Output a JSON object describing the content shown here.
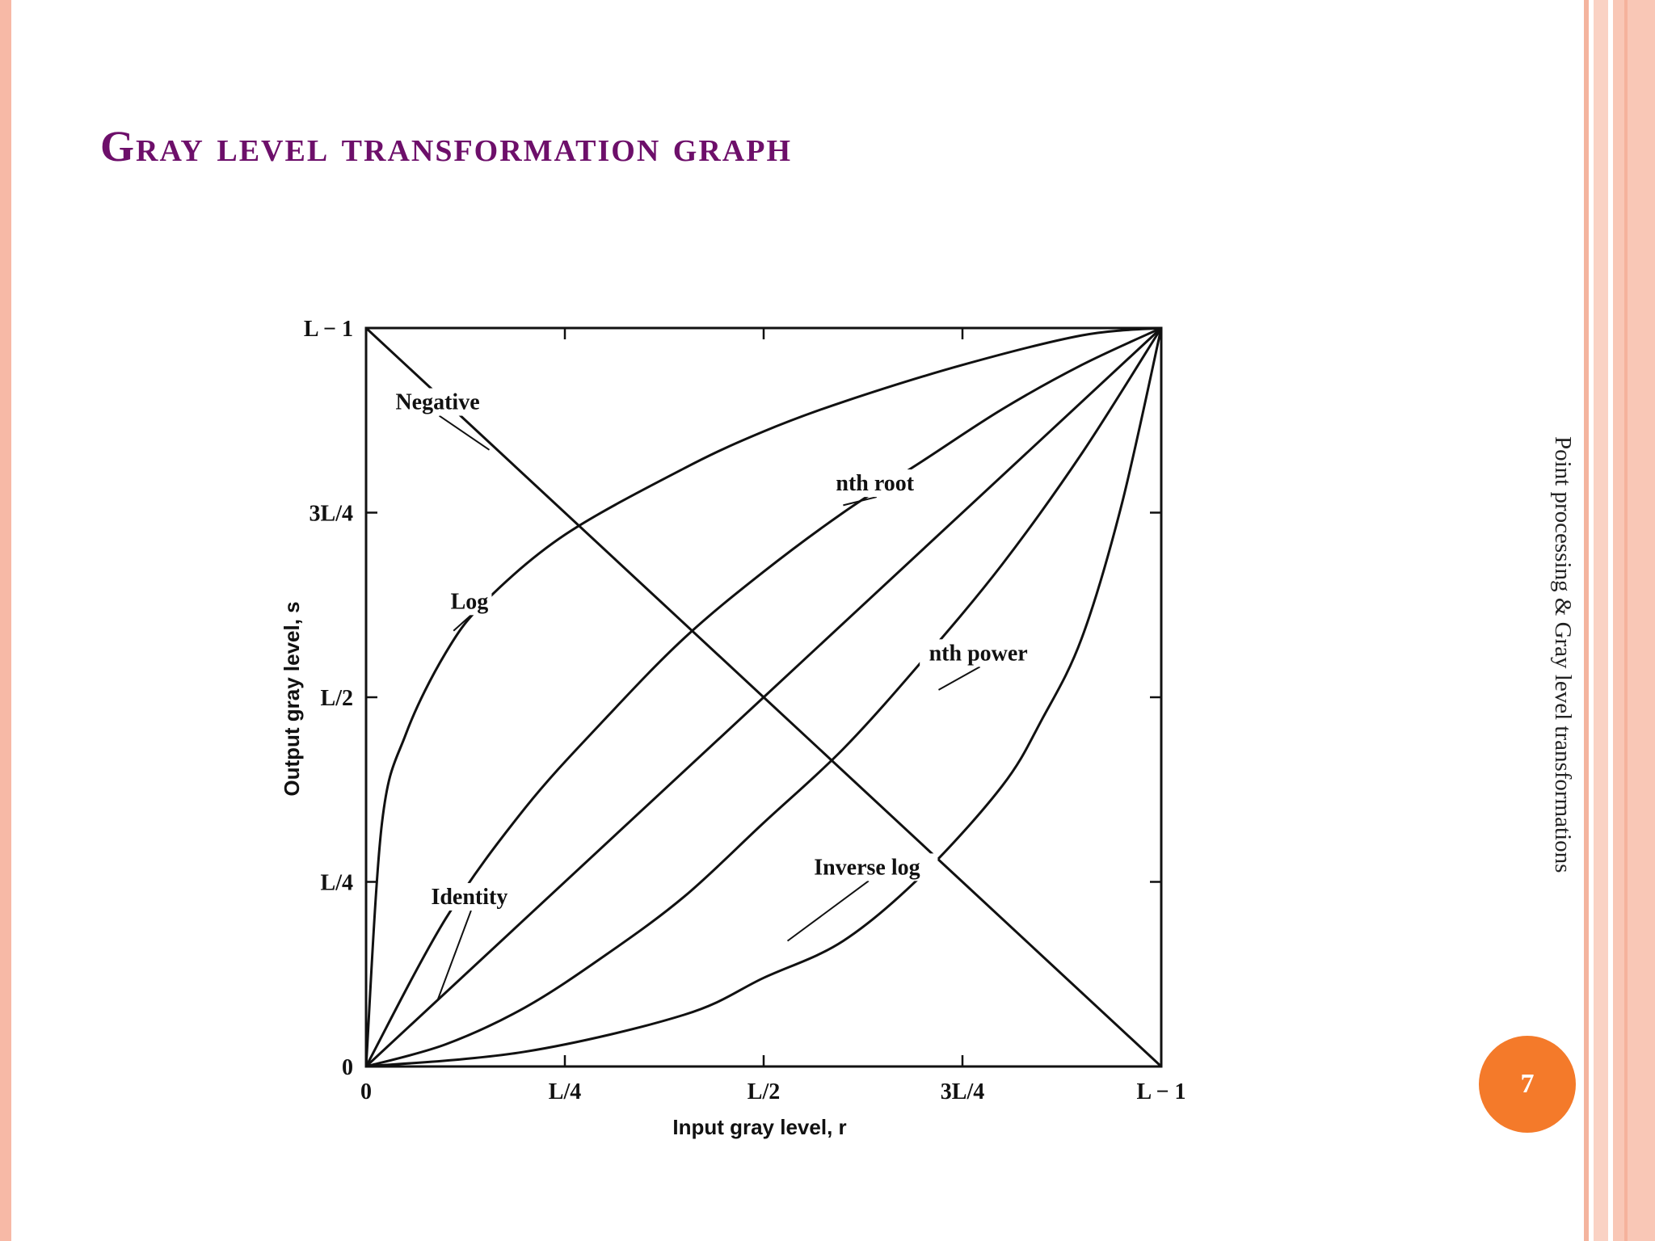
{
  "slide": {
    "title": "Gray level transformation graph",
    "side_caption": "Point processing & Gray level transformations",
    "page_number": "7",
    "title_color": "#6d0f6a",
    "badge_color": "#f47a2a",
    "border_color": "#f7b9a6"
  },
  "chart_data": {
    "type": "line",
    "xlabel": "Input gray level, r",
    "ylabel": "Output gray level, s",
    "x_ticks": [
      {
        "value": 0,
        "label": "0"
      },
      {
        "value": 0.25,
        "label": "L/4"
      },
      {
        "value": 0.5,
        "label": "L/2"
      },
      {
        "value": 0.75,
        "label": "3L/4"
      },
      {
        "value": 1,
        "label": "L − 1"
      }
    ],
    "y_ticks": [
      {
        "value": 0,
        "label": "0"
      },
      {
        "value": 0.25,
        "label": "L/4"
      },
      {
        "value": 0.5,
        "label": "L/2"
      },
      {
        "value": 0.75,
        "label": "3L/4"
      },
      {
        "value": 1,
        "label": "L − 1"
      }
    ],
    "xlim": [
      0,
      1
    ],
    "ylim": [
      0,
      1
    ],
    "grid": false,
    "series": [
      {
        "name": "Negative",
        "x": [
          0,
          0.25,
          0.5,
          0.75,
          1
        ],
        "y": [
          1,
          0.75,
          0.5,
          0.25,
          0
        ]
      },
      {
        "name": "Log",
        "x": [
          0,
          0.02,
          0.05,
          0.1,
          0.15,
          0.25,
          0.4,
          0.5,
          0.6,
          0.75,
          0.9,
          1
        ],
        "y": [
          0,
          0.33,
          0.45,
          0.56,
          0.63,
          0.72,
          0.81,
          0.86,
          0.9,
          0.95,
          0.99,
          1
        ]
      },
      {
        "name": "nth root",
        "x": [
          0,
          0.1,
          0.2,
          0.3,
          0.4,
          0.5,
          0.6,
          0.7,
          0.8,
          0.9,
          1
        ],
        "y": [
          0,
          0.2,
          0.35,
          0.47,
          0.58,
          0.67,
          0.75,
          0.82,
          0.89,
          0.95,
          1
        ]
      },
      {
        "name": "Identity",
        "x": [
          0,
          1
        ],
        "y": [
          0,
          1
        ]
      },
      {
        "name": "nth power",
        "x": [
          0,
          0.1,
          0.2,
          0.3,
          0.4,
          0.5,
          0.6,
          0.7,
          0.8,
          0.9,
          1
        ],
        "y": [
          0,
          0.03,
          0.08,
          0.15,
          0.23,
          0.33,
          0.43,
          0.55,
          0.68,
          0.83,
          1
        ]
      },
      {
        "name": "Inverse log",
        "x": [
          0,
          0.2,
          0.4,
          0.5,
          0.6,
          0.7,
          0.8,
          0.85,
          0.9,
          0.95,
          1
        ],
        "y": [
          0,
          0.02,
          0.07,
          0.12,
          0.17,
          0.26,
          0.38,
          0.47,
          0.58,
          0.76,
          1
        ]
      }
    ],
    "annotations": [
      {
        "text": "Negative",
        "x": 0.09,
        "y": 0.89,
        "tx": 0.155,
        "ty": 0.835
      },
      {
        "text": "nth root",
        "x": 0.64,
        "y": 0.78,
        "tx": 0.6,
        "ty": 0.76
      },
      {
        "text": "Log",
        "x": 0.13,
        "y": 0.62,
        "tx": 0.11,
        "ty": 0.59
      },
      {
        "text": "nth power",
        "x": 0.77,
        "y": 0.55,
        "tx": 0.72,
        "ty": 0.51
      },
      {
        "text": "Identity",
        "x": 0.13,
        "y": 0.22,
        "tx": 0.09,
        "ty": 0.09
      },
      {
        "text": "Inverse log",
        "x": 0.63,
        "y": 0.26,
        "tx": 0.53,
        "ty": 0.17
      }
    ]
  }
}
